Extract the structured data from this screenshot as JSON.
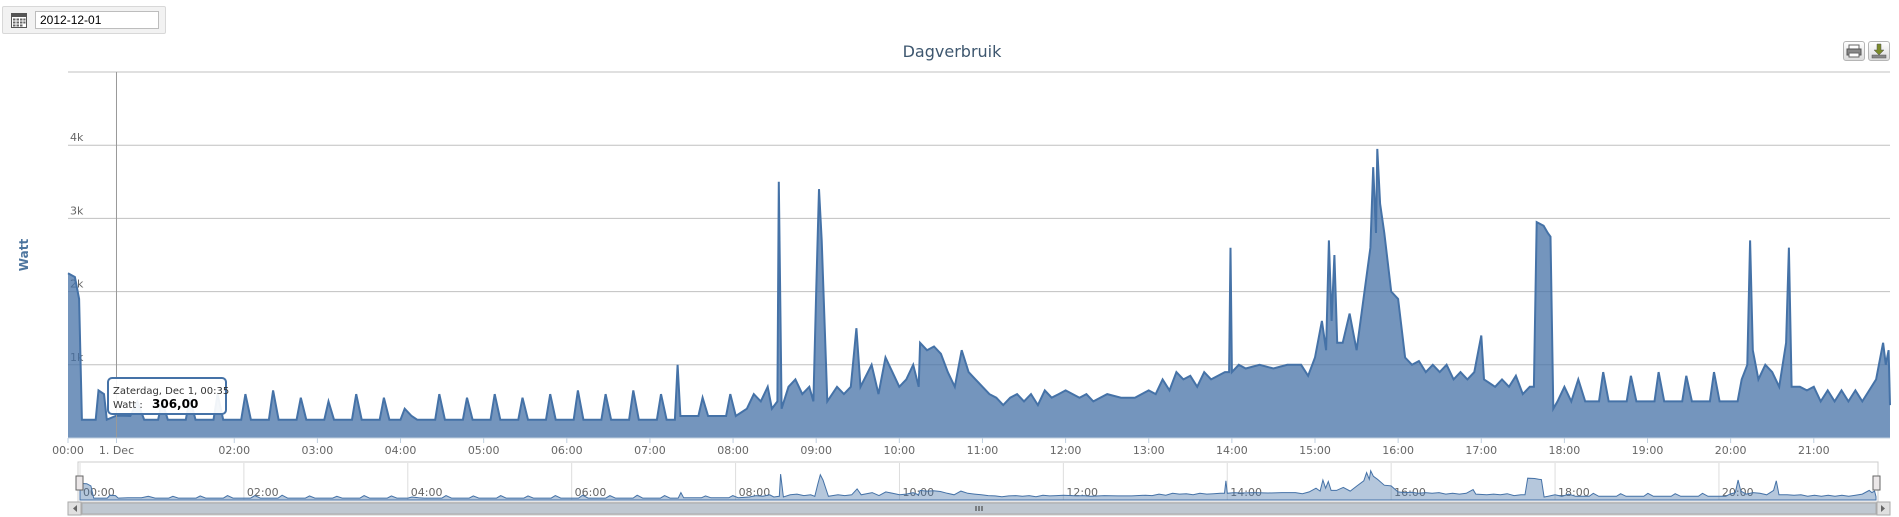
{
  "date_picker": {
    "value": "2012-12-01",
    "icon": "calendar-icon"
  },
  "export_buttons": [
    {
      "icon": "print-icon"
    },
    {
      "icon": "download-icon"
    }
  ],
  "tooltip": {
    "header": "Zaterdag, Dec 1, 00:35",
    "series_label": "Watt :",
    "value": "306,00"
  },
  "chart_data": {
    "type": "area",
    "title": "Dagverbruik",
    "xlabel": "",
    "ylabel": "Watt",
    "ylim": [
      0,
      5000
    ],
    "xlim": [
      "00:00",
      "21:55"
    ],
    "y_ticks": [
      {
        "value": 1000,
        "label": "1k"
      },
      {
        "value": 2000,
        "label": "2k"
      },
      {
        "value": 3000,
        "label": "3k"
      },
      {
        "value": 4000,
        "label": "4k"
      }
    ],
    "x_ticks": [
      {
        "value": "00:00",
        "label": "00:00"
      },
      {
        "value": "00:35",
        "label": "1. Dec"
      },
      {
        "value": "02:00",
        "label": "02:00"
      },
      {
        "value": "03:00",
        "label": "03:00"
      },
      {
        "value": "04:00",
        "label": "04:00"
      },
      {
        "value": "05:00",
        "label": "05:00"
      },
      {
        "value": "06:00",
        "label": "06:00"
      },
      {
        "value": "07:00",
        "label": "07:00"
      },
      {
        "value": "08:00",
        "label": "08:00"
      },
      {
        "value": "09:00",
        "label": "09:00"
      },
      {
        "value": "10:00",
        "label": "10:00"
      },
      {
        "value": "11:00",
        "label": "11:00"
      },
      {
        "value": "12:00",
        "label": "12:00"
      },
      {
        "value": "13:00",
        "label": "13:00"
      },
      {
        "value": "14:00",
        "label": "14:00"
      },
      {
        "value": "15:00",
        "label": "15:00"
      },
      {
        "value": "16:00",
        "label": "16:00"
      },
      {
        "value": "17:00",
        "label": "17:00"
      },
      {
        "value": "18:00",
        "label": "18:00"
      },
      {
        "value": "19:00",
        "label": "19:00"
      },
      {
        "value": "20:00",
        "label": "20:00"
      },
      {
        "value": "21:00",
        "label": "21:00"
      }
    ],
    "navigator_ticks": [
      "00:00",
      "02:00",
      "04:00",
      "06:00",
      "08:00",
      "10:00",
      "12:00",
      "14:00",
      "16:00",
      "18:00",
      "20:00"
    ],
    "series": [
      {
        "name": "Watt",
        "color": "#4572a7",
        "points": [
          [
            "00:00",
            2250
          ],
          [
            "00:05",
            2200
          ],
          [
            "00:08",
            1900
          ],
          [
            "00:10",
            250
          ],
          [
            "00:20",
            250
          ],
          [
            "00:22",
            650
          ],
          [
            "00:26",
            600
          ],
          [
            "00:28",
            250
          ],
          [
            "00:35",
            306
          ],
          [
            "00:45",
            300
          ],
          [
            "00:50",
            500
          ],
          [
            "00:55",
            250
          ],
          [
            "01:05",
            250
          ],
          [
            "01:08",
            500
          ],
          [
            "01:12",
            250
          ],
          [
            "01:25",
            250
          ],
          [
            "01:28",
            550
          ],
          [
            "01:32",
            250
          ],
          [
            "01:45",
            250
          ],
          [
            "01:48",
            600
          ],
          [
            "01:52",
            250
          ],
          [
            "02:05",
            250
          ],
          [
            "02:08",
            600
          ],
          [
            "02:12",
            250
          ],
          [
            "02:25",
            250
          ],
          [
            "02:28",
            650
          ],
          [
            "02:32",
            250
          ],
          [
            "02:45",
            250
          ],
          [
            "02:48",
            550
          ],
          [
            "02:52",
            250
          ],
          [
            "03:05",
            250
          ],
          [
            "03:08",
            500
          ],
          [
            "03:12",
            250
          ],
          [
            "03:25",
            250
          ],
          [
            "03:28",
            600
          ],
          [
            "03:32",
            250
          ],
          [
            "03:45",
            250
          ],
          [
            "03:48",
            550
          ],
          [
            "03:52",
            250
          ],
          [
            "04:00",
            250
          ],
          [
            "04:03",
            400
          ],
          [
            "04:08",
            300
          ],
          [
            "04:12",
            250
          ],
          [
            "04:25",
            250
          ],
          [
            "04:28",
            600
          ],
          [
            "04:32",
            250
          ],
          [
            "04:45",
            250
          ],
          [
            "04:48",
            550
          ],
          [
            "04:52",
            250
          ],
          [
            "05:05",
            250
          ],
          [
            "05:08",
            600
          ],
          [
            "05:12",
            250
          ],
          [
            "05:25",
            250
          ],
          [
            "05:28",
            550
          ],
          [
            "05:32",
            250
          ],
          [
            "05:45",
            250
          ],
          [
            "05:48",
            600
          ],
          [
            "05:52",
            250
          ],
          [
            "06:05",
            250
          ],
          [
            "06:08",
            650
          ],
          [
            "06:12",
            250
          ],
          [
            "06:25",
            250
          ],
          [
            "06:28",
            600
          ],
          [
            "06:32",
            250
          ],
          [
            "06:45",
            250
          ],
          [
            "06:48",
            650
          ],
          [
            "06:52",
            250
          ],
          [
            "07:05",
            250
          ],
          [
            "07:08",
            600
          ],
          [
            "07:12",
            250
          ],
          [
            "07:18",
            250
          ],
          [
            "07:20",
            1000
          ],
          [
            "07:22",
            300
          ],
          [
            "07:35",
            300
          ],
          [
            "07:38",
            550
          ],
          [
            "07:42",
            300
          ],
          [
            "07:55",
            300
          ],
          [
            "07:58",
            600
          ],
          [
            "08:02",
            300
          ],
          [
            "08:10",
            400
          ],
          [
            "08:15",
            600
          ],
          [
            "08:20",
            500
          ],
          [
            "08:25",
            700
          ],
          [
            "08:28",
            400
          ],
          [
            "08:32",
            500
          ],
          [
            "08:33",
            3500
          ],
          [
            "08:35",
            400
          ],
          [
            "08:40",
            700
          ],
          [
            "08:45",
            800
          ],
          [
            "08:50",
            600
          ],
          [
            "08:55",
            700
          ],
          [
            "08:58",
            500
          ],
          [
            "09:00",
            2000
          ],
          [
            "09:02",
            3400
          ],
          [
            "09:04",
            2700
          ],
          [
            "09:08",
            500
          ],
          [
            "09:15",
            700
          ],
          [
            "09:20",
            600
          ],
          [
            "09:25",
            700
          ],
          [
            "09:29",
            1500
          ],
          [
            "09:32",
            700
          ],
          [
            "09:40",
            1000
          ],
          [
            "09:45",
            600
          ],
          [
            "09:50",
            1100
          ],
          [
            "09:55",
            900
          ],
          [
            "10:00",
            700
          ],
          [
            "10:05",
            800
          ],
          [
            "10:10",
            1000
          ],
          [
            "10:14",
            700
          ],
          [
            "10:15",
            1300
          ],
          [
            "10:20",
            1200
          ],
          [
            "10:25",
            1250
          ],
          [
            "10:30",
            1150
          ],
          [
            "10:35",
            900
          ],
          [
            "10:40",
            700
          ],
          [
            "10:45",
            1200
          ],
          [
            "10:50",
            900
          ],
          [
            "10:55",
            800
          ],
          [
            "11:00",
            700
          ],
          [
            "11:05",
            600
          ],
          [
            "11:10",
            550
          ],
          [
            "11:15",
            450
          ],
          [
            "11:20",
            550
          ],
          [
            "11:25",
            600
          ],
          [
            "11:30",
            500
          ],
          [
            "11:35",
            600
          ],
          [
            "11:40",
            450
          ],
          [
            "11:45",
            650
          ],
          [
            "11:50",
            550
          ],
          [
            "11:55",
            600
          ],
          [
            "12:00",
            650
          ],
          [
            "12:10",
            550
          ],
          [
            "12:15",
            600
          ],
          [
            "12:20",
            500
          ],
          [
            "12:30",
            600
          ],
          [
            "12:40",
            550
          ],
          [
            "12:50",
            550
          ],
          [
            "13:00",
            650
          ],
          [
            "13:05",
            600
          ],
          [
            "13:10",
            800
          ],
          [
            "13:15",
            650
          ],
          [
            "13:20",
            900
          ],
          [
            "13:25",
            800
          ],
          [
            "13:30",
            850
          ],
          [
            "13:35",
            700
          ],
          [
            "13:40",
            900
          ],
          [
            "13:45",
            800
          ],
          [
            "13:50",
            850
          ],
          [
            "13:55",
            900
          ],
          [
            "13:58",
            900
          ],
          [
            "13:59",
            2600
          ],
          [
            "14:00",
            900
          ],
          [
            "14:05",
            1000
          ],
          [
            "14:10",
            950
          ],
          [
            "14:20",
            1000
          ],
          [
            "14:30",
            950
          ],
          [
            "14:40",
            1000
          ],
          [
            "14:50",
            1000
          ],
          [
            "14:55",
            850
          ],
          [
            "15:00",
            1100
          ],
          [
            "15:05",
            1600
          ],
          [
            "15:08",
            1200
          ],
          [
            "15:10",
            2700
          ],
          [
            "15:12",
            1600
          ],
          [
            "15:14",
            2500
          ],
          [
            "15:16",
            1300
          ],
          [
            "15:20",
            1300
          ],
          [
            "15:25",
            1700
          ],
          [
            "15:30",
            1200
          ],
          [
            "15:35",
            1900
          ],
          [
            "15:40",
            2600
          ],
          [
            "15:42",
            3700
          ],
          [
            "15:44",
            2800
          ],
          [
            "15:45",
            3950
          ],
          [
            "15:47",
            3200
          ],
          [
            "15:50",
            2800
          ],
          [
            "15:55",
            2000
          ],
          [
            "16:00",
            1900
          ],
          [
            "16:05",
            1100
          ],
          [
            "16:10",
            1000
          ],
          [
            "16:15",
            1050
          ],
          [
            "16:20",
            900
          ],
          [
            "16:25",
            1000
          ],
          [
            "16:30",
            900
          ],
          [
            "16:35",
            1000
          ],
          [
            "16:40",
            800
          ],
          [
            "16:45",
            900
          ],
          [
            "16:50",
            800
          ],
          [
            "16:55",
            900
          ],
          [
            "17:00",
            1400
          ],
          [
            "17:02",
            800
          ],
          [
            "17:10",
            700
          ],
          [
            "17:15",
            800
          ],
          [
            "17:20",
            700
          ],
          [
            "17:25",
            850
          ],
          [
            "17:30",
            600
          ],
          [
            "17:35",
            700
          ],
          [
            "17:38",
            700
          ],
          [
            "17:40",
            2950
          ],
          [
            "17:45",
            2900
          ],
          [
            "17:48",
            2800
          ],
          [
            "17:50",
            2750
          ],
          [
            "17:52",
            400
          ],
          [
            "17:55",
            500
          ],
          [
            "18:00",
            700
          ],
          [
            "18:05",
            500
          ],
          [
            "18:10",
            800
          ],
          [
            "18:15",
            500
          ],
          [
            "18:25",
            500
          ],
          [
            "18:28",
            900
          ],
          [
            "18:32",
            500
          ],
          [
            "18:45",
            500
          ],
          [
            "18:48",
            850
          ],
          [
            "18:52",
            500
          ],
          [
            "19:05",
            500
          ],
          [
            "19:08",
            900
          ],
          [
            "19:12",
            500
          ],
          [
            "19:25",
            500
          ],
          [
            "19:28",
            850
          ],
          [
            "19:32",
            500
          ],
          [
            "19:45",
            500
          ],
          [
            "19:48",
            900
          ],
          [
            "19:52",
            500
          ],
          [
            "20:05",
            500
          ],
          [
            "20:08",
            800
          ],
          [
            "20:12",
            1000
          ],
          [
            "20:14",
            2700
          ],
          [
            "20:16",
            1200
          ],
          [
            "20:20",
            800
          ],
          [
            "20:25",
            1000
          ],
          [
            "20:30",
            900
          ],
          [
            "20:35",
            700
          ],
          [
            "20:40",
            1300
          ],
          [
            "20:42",
            2600
          ],
          [
            "20:44",
            700
          ],
          [
            "20:50",
            700
          ],
          [
            "20:55",
            650
          ],
          [
            "21:00",
            700
          ],
          [
            "21:05",
            500
          ],
          [
            "21:10",
            650
          ],
          [
            "21:15",
            500
          ],
          [
            "21:20",
            650
          ],
          [
            "21:25",
            500
          ],
          [
            "21:30",
            650
          ],
          [
            "21:35",
            500
          ],
          [
            "21:40",
            650
          ],
          [
            "21:45",
            800
          ],
          [
            "21:50",
            1300
          ],
          [
            "21:52",
            1000
          ],
          [
            "21:54",
            1200
          ],
          [
            "21:55",
            450
          ]
        ]
      }
    ]
  }
}
